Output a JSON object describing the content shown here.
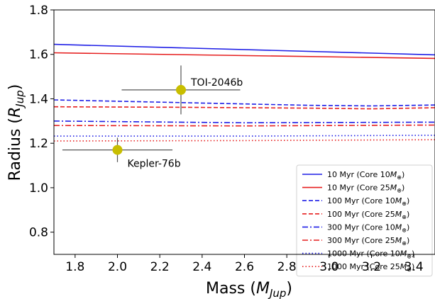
{
  "chart_data": {
    "type": "line",
    "xlabel": "Mass ($M_{Jup}$)",
    "ylabel": "Radius ($R_{Jup}$)",
    "xlabel_main": "Mass (",
    "xlabel_var": "M",
    "xlabel_sub": "Jup",
    "xlabel_close": ")",
    "ylabel_main": "Radius (",
    "ylabel_var": "R",
    "ylabel_sub": "Jup",
    "ylabel_close": ")",
    "xlim": [
      1.7,
      3.5
    ],
    "ylim": [
      0.7,
      1.8
    ],
    "xticks": [
      1.8,
      2.0,
      2.2,
      2.4,
      2.6,
      2.8,
      3.0,
      3.2,
      3.4
    ],
    "yticks": [
      0.8,
      1.0,
      1.2,
      1.4,
      1.6,
      1.8
    ],
    "xtick_labels": [
      "1.8",
      "2.0",
      "2.2",
      "2.4",
      "2.6",
      "2.8",
      "3.0",
      "3.2",
      "3.4"
    ],
    "ytick_labels": [
      "0.8",
      "1.0",
      "1.2",
      "1.4",
      "1.6",
      "1.8"
    ],
    "grid": false,
    "legend_position": "lower-right",
    "series": [
      {
        "name": "10 Myr (Core 10$M_\\oplus$)",
        "label_text": "10 Myr (Core 10",
        "color": "#1f1fe6",
        "dash": "solid",
        "x": [
          1.7,
          3.5
        ],
        "y": [
          1.645,
          1.598
        ]
      },
      {
        "name": "10 Myr (Core 25$M_\\oplus$)",
        "label_text": "10 Myr (Core 25",
        "color": "#e61f1f",
        "dash": "solid",
        "x": [
          1.7,
          3.5
        ],
        "y": [
          1.607,
          1.582
        ]
      },
      {
        "name": "100 Myr (Core 10$M_\\oplus$)",
        "label_text": "100 Myr (Core 10",
        "color": "#1f1fe6",
        "dash": "dashed",
        "x": [
          1.7,
          2.3,
          2.9,
          3.2,
          3.5
        ],
        "y": [
          1.395,
          1.383,
          1.371,
          1.368,
          1.372
        ]
      },
      {
        "name": "100 Myr (Core 25$M_\\oplus$)",
        "label_text": "100 Myr (Core 25",
        "color": "#e61f1f",
        "dash": "dashed",
        "x": [
          1.7,
          2.3,
          2.9,
          3.2,
          3.5
        ],
        "y": [
          1.364,
          1.362,
          1.358,
          1.355,
          1.36
        ]
      },
      {
        "name": "300 Myr (Core 10$M_\\oplus$)",
        "label_text": "300 Myr (Core 10",
        "color": "#1f1fe6",
        "dash": "dashdot",
        "x": [
          1.7,
          2.6,
          3.5
        ],
        "y": [
          1.3,
          1.292,
          1.295
        ]
      },
      {
        "name": "300 Myr (Core 25$M_\\oplus$)",
        "label_text": "300 Myr (Core 25",
        "color": "#e61f1f",
        "dash": "dashdot",
        "x": [
          1.7,
          2.6,
          3.5
        ],
        "y": [
          1.28,
          1.278,
          1.282
        ]
      },
      {
        "name": "1000 Myr (Core 10$M_\\oplus$)",
        "label_text": "1000 Myr (Core 10",
        "color": "#1f1fe6",
        "dash": "dotted",
        "x": [
          1.7,
          2.6,
          3.5
        ],
        "y": [
          1.232,
          1.232,
          1.236
        ]
      },
      {
        "name": "1000 Myr (Core 25$M_\\oplus$)",
        "label_text": "1000 Myr (Core 25",
        "color": "#e61f1f",
        "dash": "dotted",
        "x": [
          1.7,
          2.6,
          3.5
        ],
        "y": [
          1.21,
          1.212,
          1.216
        ]
      }
    ],
    "legend_suffix_var": "M",
    "legend_suffix_sub": "⊕",
    "legend_suffix_close": ")",
    "points": [
      {
        "label": "TOI-2046b",
        "x": 2.3,
        "y": 1.44,
        "xerr": [
          0.28,
          0.28
        ],
        "yerr": [
          0.11,
          0.11
        ],
        "color": "#c8be00"
      },
      {
        "label": "Kepler-76b",
        "x": 2.0,
        "y": 1.17,
        "xerr": [
          0.26,
          0.26
        ],
        "yerr": [
          0.055,
          0.055
        ],
        "color": "#c8be00"
      }
    ]
  }
}
